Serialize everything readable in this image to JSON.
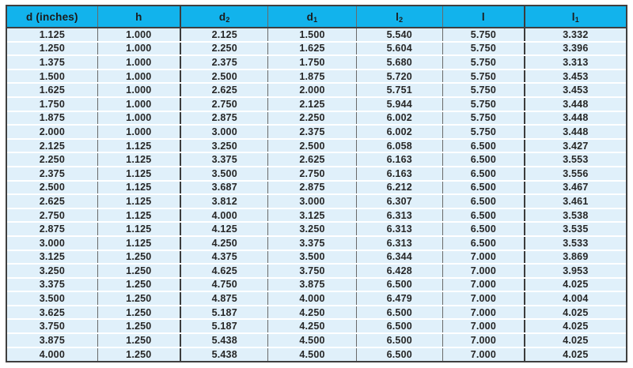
{
  "table": {
    "title": "shaft-dimension-table",
    "unit_note": "inches",
    "colors": {
      "header_bg": "#12b3ec",
      "row_bg": "#e0f0fa",
      "frame_border": "#3f3f3f",
      "column_rule": "#6a6a6a",
      "row_separator": "#ffffff",
      "text": "#262626"
    },
    "columns": [
      {
        "text": "d (inches)",
        "sub": ""
      },
      {
        "text": "h",
        "sub": ""
      },
      {
        "text": "d",
        "sub": "2"
      },
      {
        "text": "d",
        "sub": "1"
      },
      {
        "text": "l",
        "sub": "2"
      },
      {
        "text": "l",
        "sub": ""
      },
      {
        "text": "l",
        "sub": "1"
      }
    ],
    "rows": [
      [
        "1.125",
        "1.000",
        "2.125",
        "1.500",
        "5.540",
        "5.750",
        "3.332"
      ],
      [
        "1.250",
        "1.000",
        "2.250",
        "1.625",
        "5.604",
        "5.750",
        "3.396"
      ],
      [
        "1.375",
        "1.000",
        "2.375",
        "1.750",
        "5.680",
        "5.750",
        "3.313"
      ],
      [
        "1.500",
        "1.000",
        "2.500",
        "1.875",
        "5.720",
        "5.750",
        "3.453"
      ],
      [
        "1.625",
        "1.000",
        "2.625",
        "2.000",
        "5.751",
        "5.750",
        "3.453"
      ],
      [
        "1.750",
        "1.000",
        "2.750",
        "2.125",
        "5.944",
        "5.750",
        "3.448"
      ],
      [
        "1.875",
        "1.000",
        "2.875",
        "2.250",
        "6.002",
        "5.750",
        "3.448"
      ],
      [
        "2.000",
        "1.000",
        "3.000",
        "2.375",
        "6.002",
        "5.750",
        "3.448"
      ],
      [
        "2.125",
        "1.125",
        "3.250",
        "2.500",
        "6.058",
        "6.500",
        "3.427"
      ],
      [
        "2.250",
        "1.125",
        "3.375",
        "2.625",
        "6.163",
        "6.500",
        "3.553"
      ],
      [
        "2.375",
        "1.125",
        "3.500",
        "2.750",
        "6.163",
        "6.500",
        "3.556"
      ],
      [
        "2.500",
        "1.125",
        "3.687",
        "2.875",
        "6.212",
        "6.500",
        "3.467"
      ],
      [
        "2.625",
        "1.125",
        "3.812",
        "3.000",
        "6.307",
        "6.500",
        "3.461"
      ],
      [
        "2.750",
        "1.125",
        "4.000",
        "3.125",
        "6.313",
        "6.500",
        "3.538"
      ],
      [
        "2.875",
        "1.125",
        "4.125",
        "3.250",
        "6.313",
        "6.500",
        "3.535"
      ],
      [
        "3.000",
        "1.125",
        "4.250",
        "3.375",
        "6.313",
        "6.500",
        "3.533"
      ],
      [
        "3.125",
        "1.250",
        "4.375",
        "3.500",
        "6.344",
        "7.000",
        "3.869"
      ],
      [
        "3.250",
        "1.250",
        "4.625",
        "3.750",
        "6.428",
        "7.000",
        "3.953"
      ],
      [
        "3.375",
        "1.250",
        "4.750",
        "3.875",
        "6.500",
        "7.000",
        "4.025"
      ],
      [
        "3.500",
        "1.250",
        "4.875",
        "4.000",
        "6.479",
        "7.000",
        "4.004"
      ],
      [
        "3.625",
        "1.250",
        "5.187",
        "4.250",
        "6.500",
        "7.000",
        "4.025"
      ],
      [
        "3.750",
        "1.250",
        "5.187",
        "4.250",
        "6.500",
        "7.000",
        "4.025"
      ],
      [
        "3.875",
        "1.250",
        "5.438",
        "4.500",
        "6.500",
        "7.000",
        "4.025"
      ],
      [
        "4.000",
        "1.250",
        "5.438",
        "4.500",
        "6.500",
        "7.000",
        "4.025"
      ]
    ]
  }
}
